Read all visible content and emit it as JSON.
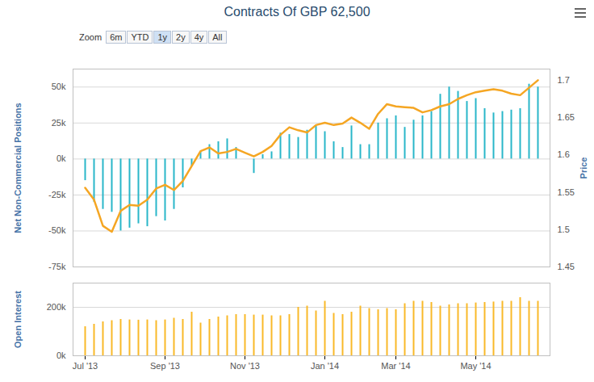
{
  "zoom": {
    "label": "Zoom",
    "buttons": [
      "6m",
      "YTD",
      "1y",
      "2y",
      "4y",
      "All"
    ],
    "selected": "1y"
  },
  "chart_data": [
    {
      "type": "bar",
      "title": "Contracts Of GBP 62,500",
      "categories": [
        "Jul '13",
        null,
        null,
        null,
        null,
        null,
        null,
        null,
        null,
        "Sep '13",
        null,
        null,
        null,
        null,
        null,
        null,
        null,
        null,
        "Nov '13",
        null,
        null,
        null,
        null,
        null,
        null,
        null,
        null,
        "Jan '14",
        null,
        null,
        null,
        null,
        null,
        null,
        null,
        "Mar '14",
        null,
        null,
        null,
        null,
        null,
        null,
        null,
        null,
        "May '14",
        null,
        null,
        null,
        null,
        null,
        null,
        null
      ],
      "tick_labels": "y",
      "grid": true,
      "ylim": [
        -75000,
        62500
      ],
      "yticks": [
        {
          "value": -75000,
          "label": "-75k"
        },
        {
          "value": -50000,
          "label": "-50k"
        },
        {
          "value": -25000,
          "label": "-25k"
        },
        {
          "value": 0,
          "label": "0k"
        },
        {
          "value": 25000,
          "label": "25k"
        },
        {
          "value": 50000,
          "label": "50k"
        }
      ],
      "y2lim": [
        1.45,
        1.715
      ],
      "y2ticks": [
        1.45,
        1.5,
        1.55,
        1.6,
        1.65,
        1.7
      ],
      "series": [
        {
          "name": "Net Non-Commercial Positions",
          "type": "bar",
          "color": "#29b6c9",
          "values": [
            -15000,
            -30000,
            -35000,
            -37000,
            -50000,
            -48000,
            -45000,
            -47000,
            -40000,
            -43000,
            -35000,
            -20000,
            -5000,
            5000,
            10000,
            12000,
            14000,
            8000,
            0,
            -10000,
            3000,
            5000,
            18000,
            17000,
            15000,
            20000,
            23000,
            19000,
            12000,
            8000,
            23000,
            10000,
            10000,
            25000,
            28000,
            30000,
            22000,
            27000,
            30000,
            33000,
            45000,
            50000,
            47000,
            40000,
            42000,
            35000,
            32000,
            33000,
            34000,
            35000,
            52000,
            50000
          ]
        },
        {
          "name": "Price",
          "type": "line",
          "axis": "y2",
          "color": "#f5a623",
          "values": [
            1.556,
            1.54,
            1.505,
            1.497,
            1.525,
            1.533,
            1.532,
            1.54,
            1.555,
            1.56,
            1.553,
            1.565,
            1.585,
            1.605,
            1.61,
            1.602,
            1.604,
            1.608,
            1.603,
            1.598,
            1.604,
            1.612,
            1.627,
            1.637,
            1.633,
            1.63,
            1.64,
            1.643,
            1.64,
            1.642,
            1.65,
            1.643,
            1.635,
            1.655,
            1.668,
            1.665,
            1.664,
            1.663,
            1.657,
            1.66,
            1.665,
            1.668,
            1.675,
            1.68,
            1.684,
            1.686,
            1.688,
            1.686,
            1.682,
            1.68,
            1.69,
            1.7
          ]
        }
      ]
    },
    {
      "type": "bar",
      "categories": [
        "Jul '13",
        null,
        null,
        null,
        null,
        null,
        null,
        null,
        null,
        "Sep '13",
        null,
        null,
        null,
        null,
        null,
        null,
        null,
        null,
        "Nov '13",
        null,
        null,
        null,
        null,
        null,
        null,
        null,
        null,
        "Jan '14",
        null,
        null,
        null,
        null,
        null,
        null,
        null,
        "Mar '14",
        null,
        null,
        null,
        null,
        null,
        null,
        null,
        null,
        "May '14",
        null,
        null,
        null,
        null,
        null,
        null,
        null
      ],
      "grid": true,
      "ylim": [
        0,
        300000
      ],
      "yticks": [
        {
          "value": 0,
          "label": "0k"
        },
        {
          "value": 200000,
          "label": "200k"
        }
      ],
      "series": [
        {
          "name": "Open Interest",
          "type": "bar",
          "color": "#f9b928",
          "values": [
            120000,
            130000,
            140000,
            145000,
            150000,
            148000,
            147000,
            148000,
            145000,
            148000,
            155000,
            150000,
            180000,
            135000,
            150000,
            160000,
            165000,
            170000,
            170000,
            168000,
            168000,
            165000,
            165000,
            170000,
            200000,
            205000,
            185000,
            225000,
            175000,
            170000,
            180000,
            205000,
            195000,
            190000,
            195000,
            190000,
            215000,
            225000,
            225000,
            220000,
            205000,
            210000,
            215000,
            215000,
            218000,
            220000,
            222000,
            225000,
            225000,
            240000,
            225000,
            225000
          ]
        }
      ]
    }
  ]
}
